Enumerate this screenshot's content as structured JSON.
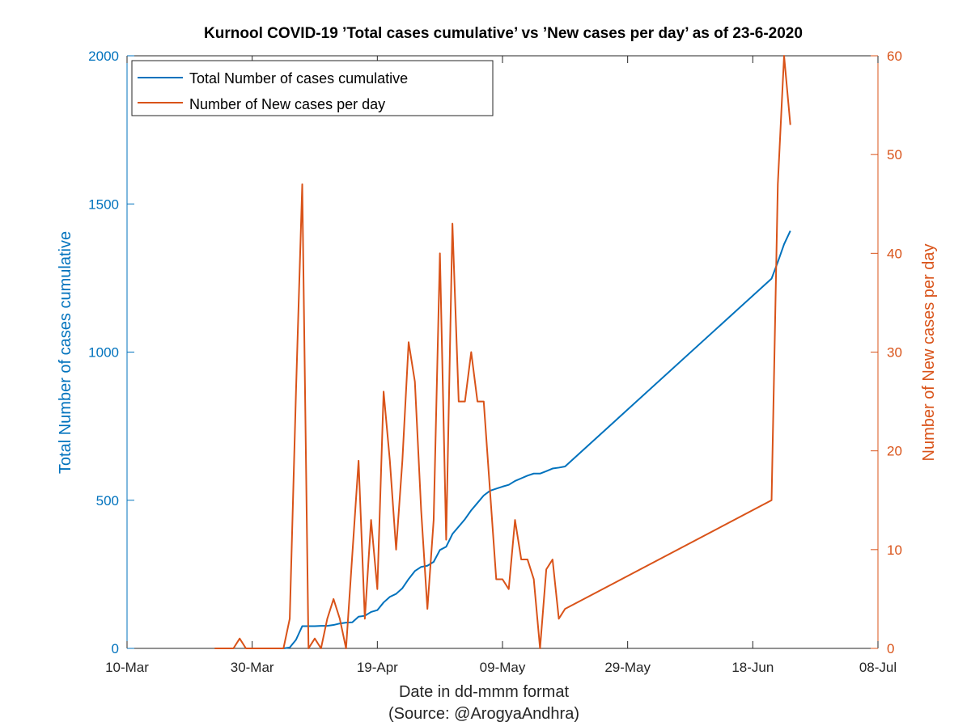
{
  "chart_data": {
    "type": "line",
    "title": "Kurnool COVID-19 ’Total cases cumulative’ vs ’New cases per day’ as of 23-6-2020",
    "xlabel": "Date in dd-mmm format",
    "xlabel_source": "(Source: @ArogyaAndhra)",
    "ylabel_left": "Total Number of cases cumulative",
    "ylabel_right": "Number of New cases per day",
    "xlim": [
      "2020-03-10",
      "2020-07-08"
    ],
    "x_ticks": [
      {
        "date": "2020-03-10",
        "label": "10-Mar"
      },
      {
        "date": "2020-03-30",
        "label": "30-Mar"
      },
      {
        "date": "2020-04-19",
        "label": "19-Apr"
      },
      {
        "date": "2020-05-09",
        "label": "09-May"
      },
      {
        "date": "2020-05-29",
        "label": "29-May"
      },
      {
        "date": "2020-06-18",
        "label": "18-Jun"
      },
      {
        "date": "2020-07-08",
        "label": "08-Jul"
      }
    ],
    "ylim_left": [
      0,
      2000
    ],
    "yticks_left": [
      0,
      500,
      1000,
      1500,
      2000
    ],
    "ylim_right": [
      0,
      60
    ],
    "yticks_right": [
      0,
      10,
      20,
      30,
      40,
      50,
      60
    ],
    "legend_position": "top-left",
    "colors": {
      "cumulative": "#0072BD",
      "new": "#D95319",
      "axis_left": "#0072BD",
      "axis_right": "#D95319"
    },
    "series": [
      {
        "name": "Total Number of cases cumulative",
        "axis": "left",
        "points": [
          [
            "2020-04-04",
            0
          ],
          [
            "2020-04-05",
            3
          ],
          [
            "2020-04-06",
            29
          ],
          [
            "2020-04-07",
            75
          ],
          [
            "2020-04-08",
            75
          ],
          [
            "2020-04-09",
            75
          ],
          [
            "2020-04-10",
            76
          ],
          [
            "2020-04-11",
            76
          ],
          [
            "2020-04-12",
            79
          ],
          [
            "2020-04-13",
            84
          ],
          [
            "2020-04-14",
            87
          ],
          [
            "2020-04-15",
            88
          ],
          [
            "2020-04-16",
            107
          ],
          [
            "2020-04-17",
            110
          ],
          [
            "2020-04-18",
            123
          ],
          [
            "2020-04-19",
            129
          ],
          [
            "2020-04-20",
            155
          ],
          [
            "2020-04-21",
            174
          ],
          [
            "2020-04-22",
            184
          ],
          [
            "2020-04-23",
            203
          ],
          [
            "2020-04-24",
            234
          ],
          [
            "2020-04-25",
            261
          ],
          [
            "2020-04-26",
            275
          ],
          [
            "2020-04-27",
            279
          ],
          [
            "2020-04-28",
            292
          ],
          [
            "2020-04-29",
            332
          ],
          [
            "2020-04-30",
            343
          ],
          [
            "2020-05-01",
            386
          ],
          [
            "2020-05-02",
            411
          ],
          [
            "2020-05-03",
            436
          ],
          [
            "2020-05-04",
            466
          ],
          [
            "2020-05-05",
            491
          ],
          [
            "2020-05-06",
            516
          ],
          [
            "2020-05-07",
            532
          ],
          [
            "2020-05-08",
            539
          ],
          [
            "2020-05-09",
            546
          ],
          [
            "2020-05-10",
            552
          ],
          [
            "2020-05-11",
            565
          ],
          [
            "2020-05-12",
            574
          ],
          [
            "2020-05-13",
            583
          ],
          [
            "2020-05-14",
            590
          ],
          [
            "2020-05-15",
            590
          ],
          [
            "2020-05-16",
            598
          ],
          [
            "2020-05-17",
            607
          ],
          [
            "2020-05-18",
            610
          ],
          [
            "2020-05-19",
            614
          ],
          [
            "2020-06-21",
            1248
          ],
          [
            "2020-06-22",
            1304
          ],
          [
            "2020-06-23",
            1364
          ],
          [
            "2020-06-24",
            1409
          ]
        ]
      },
      {
        "name": "Number of New cases per day",
        "axis": "right",
        "points": [
          [
            "2020-03-24",
            0
          ],
          [
            "2020-03-27",
            0
          ],
          [
            "2020-03-28",
            1
          ],
          [
            "2020-03-29",
            0
          ],
          [
            "2020-04-03",
            0
          ],
          [
            "2020-04-04",
            0
          ],
          [
            "2020-04-05",
            3
          ],
          [
            "2020-04-06",
            26
          ],
          [
            "2020-04-07",
            47
          ],
          [
            "2020-04-08",
            0
          ],
          [
            "2020-04-09",
            1
          ],
          [
            "2020-04-10",
            0
          ],
          [
            "2020-04-11",
            3
          ],
          [
            "2020-04-12",
            5
          ],
          [
            "2020-04-13",
            3
          ],
          [
            "2020-04-14",
            0
          ],
          [
            "2020-04-16",
            19
          ],
          [
            "2020-04-17",
            3
          ],
          [
            "2020-04-18",
            13
          ],
          [
            "2020-04-19",
            6
          ],
          [
            "2020-04-20",
            26
          ],
          [
            "2020-04-21",
            19
          ],
          [
            "2020-04-22",
            10
          ],
          [
            "2020-04-23",
            19
          ],
          [
            "2020-04-24",
            31
          ],
          [
            "2020-04-25",
            27
          ],
          [
            "2020-04-26",
            14
          ],
          [
            "2020-04-27",
            4
          ],
          [
            "2020-04-28",
            13
          ],
          [
            "2020-04-29",
            40
          ],
          [
            "2020-04-30",
            11
          ],
          [
            "2020-05-01",
            43
          ],
          [
            "2020-05-02",
            25
          ],
          [
            "2020-05-03",
            25
          ],
          [
            "2020-05-04",
            30
          ],
          [
            "2020-05-05",
            25
          ],
          [
            "2020-05-06",
            25
          ],
          [
            "2020-05-07",
            16
          ],
          [
            "2020-05-08",
            7
          ],
          [
            "2020-05-09",
            7
          ],
          [
            "2020-05-10",
            6
          ],
          [
            "2020-05-11",
            13
          ],
          [
            "2020-05-12",
            9
          ],
          [
            "2020-05-13",
            9
          ],
          [
            "2020-05-14",
            7
          ],
          [
            "2020-05-15",
            0
          ],
          [
            "2020-05-16",
            8
          ],
          [
            "2020-05-17",
            9
          ],
          [
            "2020-05-18",
            3
          ],
          [
            "2020-05-19",
            4
          ],
          [
            "2020-06-21",
            15
          ],
          [
            "2020-06-22",
            47
          ],
          [
            "2020-06-23",
            60
          ],
          [
            "2020-06-24",
            53
          ]
        ]
      }
    ]
  }
}
